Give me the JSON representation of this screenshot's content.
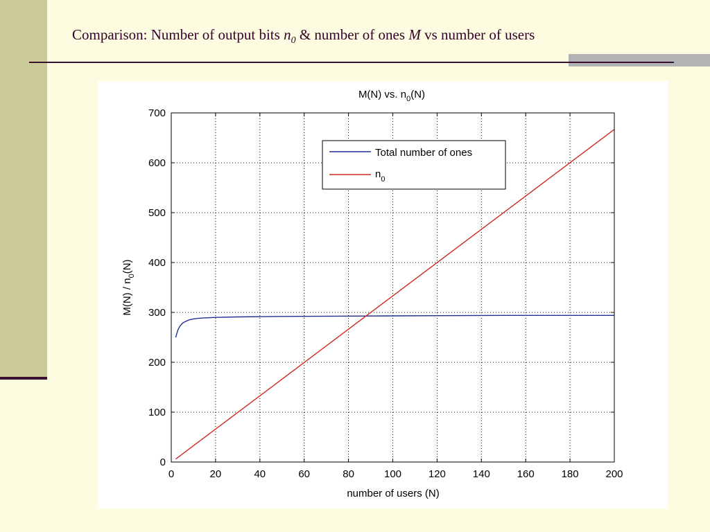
{
  "slide": {
    "title_part1": "Comparison: Number of output bits ",
    "title_n": "n",
    "title_sub": "0",
    "title_part2": " & number of ones ",
    "title_M": "M",
    "title_part3": " vs number of users"
  },
  "chart_data": {
    "type": "line",
    "title_prefix": "M(N) vs. n",
    "title_sub": "0",
    "title_suffix": "(N)",
    "xlabel": "number of users (N)",
    "ylabel_prefix": "M(N) / n",
    "ylabel_sub": "0",
    "ylabel_suffix": "(N)",
    "xlim": [
      0,
      200
    ],
    "ylim": [
      0,
      700
    ],
    "xticks": [
      0,
      20,
      40,
      60,
      80,
      100,
      120,
      140,
      160,
      180,
      200
    ],
    "yticks": [
      0,
      100,
      200,
      300,
      400,
      500,
      600,
      700
    ],
    "grid": true,
    "legend_position": "top-center",
    "series": [
      {
        "name": "Total number of ones",
        "color": "#1f2f8f",
        "x": [
          2,
          3,
          4,
          5,
          6,
          8,
          10,
          12,
          15,
          20,
          30,
          50,
          100,
          150,
          200
        ],
        "y": [
          250,
          265,
          273,
          278,
          281,
          285,
          287,
          288,
          289,
          290,
          291,
          292,
          293,
          294,
          294
        ]
      },
      {
        "name_prefix": "n",
        "name_sub": "0",
        "color": "#cc2b1e",
        "x": [
          2,
          200
        ],
        "y": [
          6,
          667
        ]
      }
    ]
  }
}
